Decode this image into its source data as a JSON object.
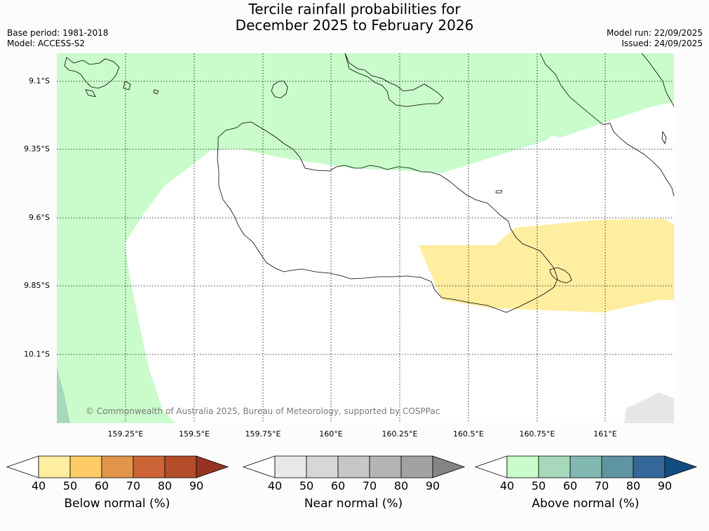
{
  "header": {
    "title_line1": "Tercile rainfall probabilities for",
    "title_line2": "December 2025 to February 2026",
    "base_period": "Base period: 1981-2018",
    "model": "Model: ACCESS-S2",
    "model_run": "Model run: 22/09/2025",
    "issued": "Issued: 24/09/2025"
  },
  "map": {
    "lat_labels": [
      "9.1°S",
      "9.35°S",
      "9.6°S",
      "9.85°S",
      "10.1°S"
    ],
    "lon_labels": [
      "159.25°E",
      "159.5°E",
      "159.75°E",
      "160°E",
      "160.25°E",
      "160.5°E",
      "160.75°E",
      "161°E"
    ],
    "copyright": "© Commonwealth of Australia 2025, Bureau of Meteorology, supported by COSPPac",
    "region_colors": {
      "above_50": "#c9fbcb",
      "above_60": "#a7d8bc",
      "below_50": "#ffeda0",
      "near_50": "#e6e6e6"
    }
  },
  "legends": [
    {
      "title": "Below normal (%)",
      "ticks": [
        "40",
        "50",
        "60",
        "70",
        "80",
        "90"
      ],
      "colors": [
        "#ffffff",
        "#ffeda0",
        "#fecb66",
        "#e1954b",
        "#cd6437",
        "#b34d2a",
        "#963322"
      ]
    },
    {
      "title": "Near normal (%)",
      "ticks": [
        "40",
        "50",
        "60",
        "70",
        "80",
        "90"
      ],
      "colors": [
        "#ffffff",
        "#e8e8e8",
        "#d7d7d7",
        "#c6c6c6",
        "#b4b4b4",
        "#a2a2a2",
        "#858585"
      ]
    },
    {
      "title": "Above normal (%)",
      "ticks": [
        "40",
        "50",
        "60",
        "70",
        "80",
        "90"
      ],
      "colors": [
        "#ffffff",
        "#c9fbcb",
        "#a7d8bc",
        "#82b7b2",
        "#5f94a2",
        "#356898",
        "#134c80"
      ]
    }
  ]
}
